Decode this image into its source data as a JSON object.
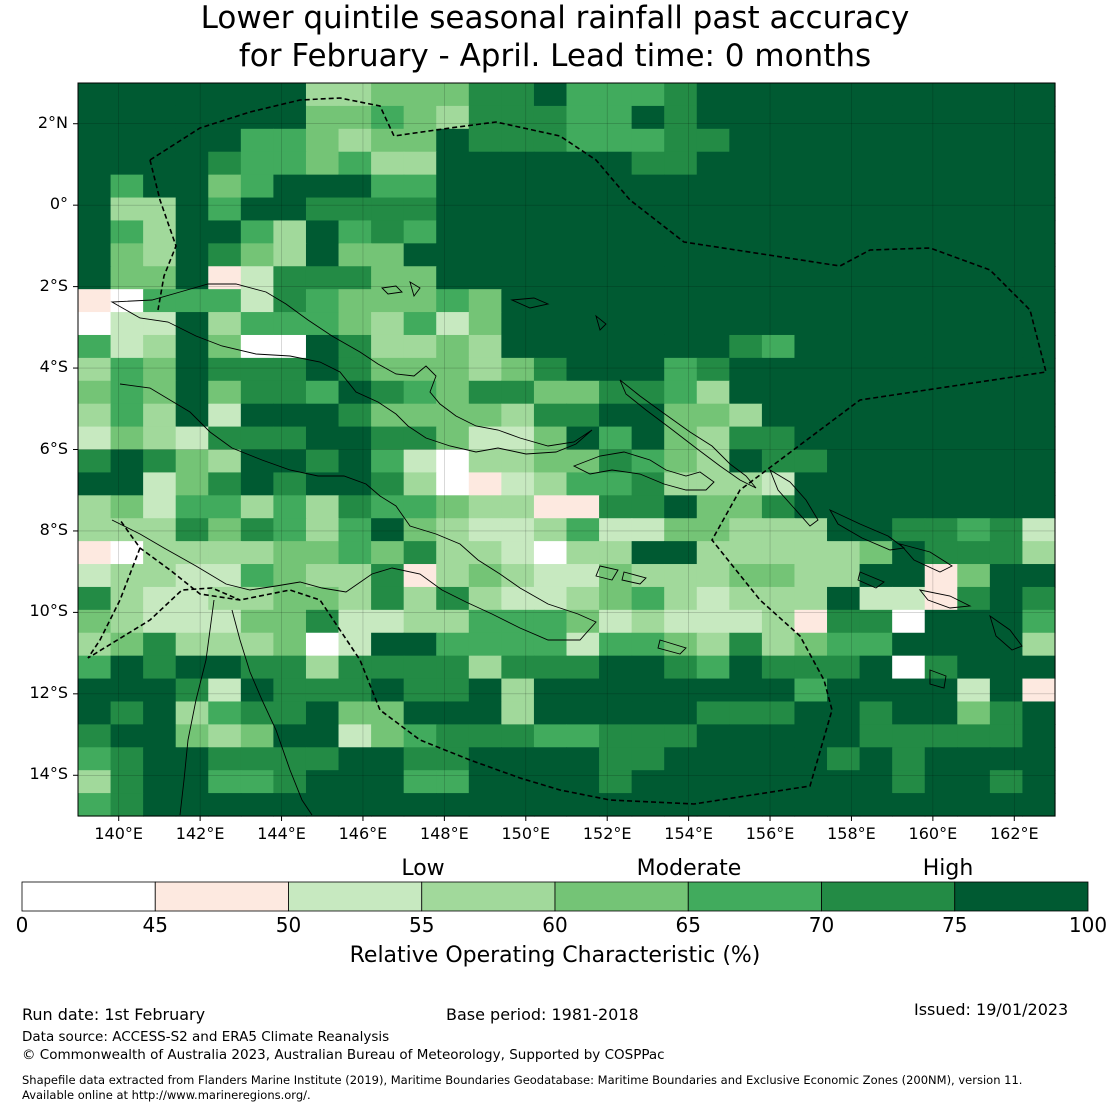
{
  "title_line1": "Lower quintile seasonal rainfall past accuracy",
  "title_line2": "for February - April. Lead time: 0 months",
  "lat_labels": [
    "2°N",
    "0°",
    "2°S",
    "4°S",
    "6°S",
    "8°S",
    "10°S",
    "12°S",
    "14°S"
  ],
  "lon_labels": [
    "140°E",
    "142°E",
    "144°E",
    "146°E",
    "148°E",
    "150°E",
    "152°E",
    "154°E",
    "156°E",
    "158°E",
    "160°E",
    "162°E"
  ],
  "colorbar": {
    "categories": [
      "Low",
      "Moderate",
      "High"
    ],
    "ticks": [
      "0",
      "45",
      "50",
      "55",
      "60",
      "65",
      "70",
      "75",
      "100"
    ],
    "colors": [
      "#ffffff",
      "#fde9e0",
      "#c7e9c0",
      "#a1d99b",
      "#74c476",
      "#41ab5d",
      "#238b45",
      "#005a32"
    ],
    "title": "Relative Operating Characteristic (%)"
  },
  "map_data": {
    "lon_range": [
      139,
      163
    ],
    "lat_range": [
      -15,
      3
    ],
    "grid_legend": "0=white(<45) 1=45-50 2=50-55 3=55-60 4=60-65 5=65-70 6=70-75 7=>75",
    "grid_rows_north_to_south": [
      "777777733444667555677777777777",
      "777777744543666557677777777777",
      "777775543447666555667777777777",
      "777765545337777776677777777777",
      "757745777557777777777777777777",
      "733757766667777777777777777777",
      "753775375657777777777777777777",
      "743764374477777777777777777777",
      "744712666447777777777777777777",
      "105552654445477777777777777777",
      "022735554352477777777777777777",
      "523740076334377777776577777777",
      "354766676444346777567777777777",
      "454746657654664466537777777777",
      "353727776444436677443777777777",
      "243266677664224757436677777777",
      "676437767520334465437667777777",
      "772467677630123556333277777777",
      "342553536554331166744677777777",
      "333646535743223522443337766562",
      "103333445463320337733333476663",
      "233225433613432243334433771477",
      "632233443636322345323337221676",
      "432224462233555423222316607775",
      "346333402775555255436345577773",
      "576776636666366677657666706777",
      "777627666766737777777757777271",
      "767356674477737777766677677467",
      "677434772456665566677777666667",
      "567766667766777766777776767777",
      "367755677755777767777777767767",
      "567777777777777777777777777777"
    ]
  },
  "footer": {
    "run_date": "Run date: 1st February",
    "base_period": "Base period: 1981-2018",
    "issued": "Issued: 19/01/2023",
    "data_source": "Data source: ACCESS-S2 and ERA5 Climate Reanalysis",
    "copyright": "© Commonwealth of Australia 2023, Australian Bureau of Meteorology, Supported by COSPPac",
    "shapefile_line1": "Shapefile data extracted from Flanders Marine Institute (2019), Maritime Boundaries Geodatabase: Maritime Boundaries and Exclusive Economic Zones (200NM), version 11.",
    "shapefile_line2": "Available online at http://www.marineregions.org/."
  }
}
